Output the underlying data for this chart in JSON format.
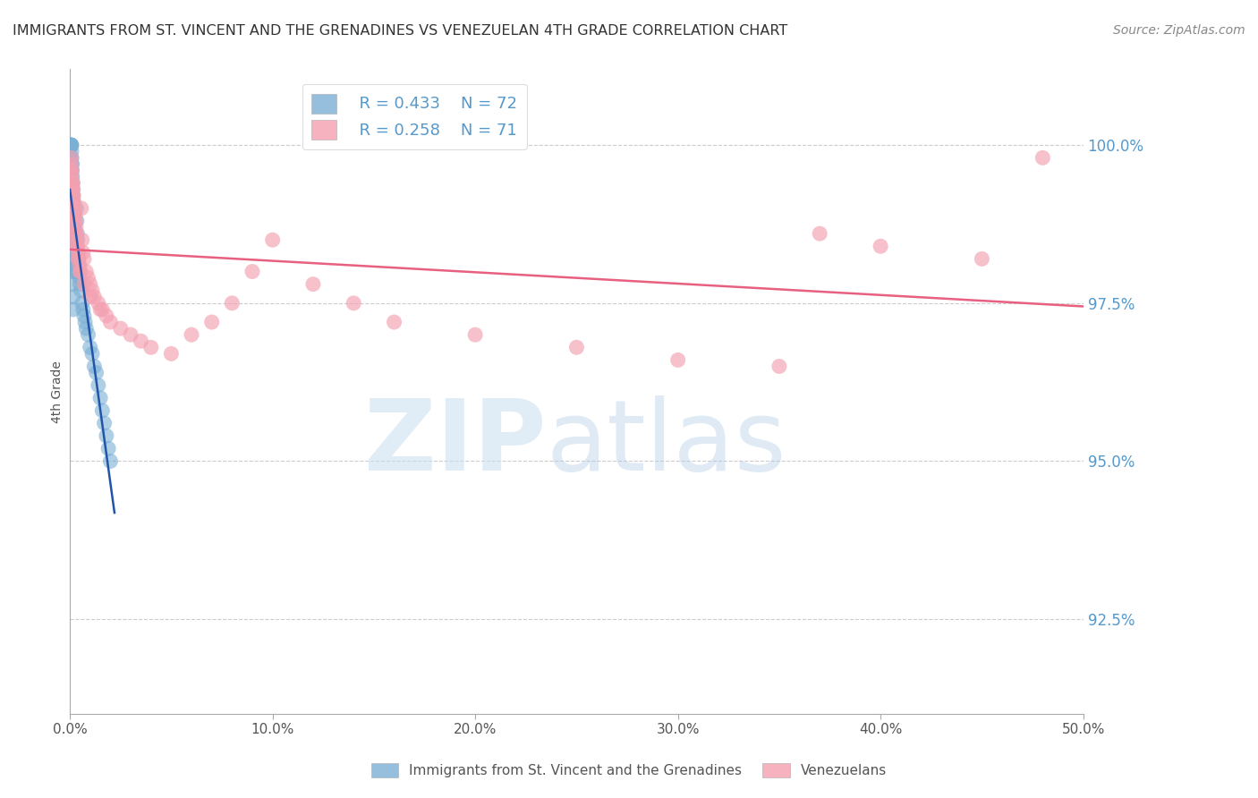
{
  "title": "IMMIGRANTS FROM ST. VINCENT AND THE GRENADINES VS VENEZUELAN 4TH GRADE CORRELATION CHART",
  "source": "Source: ZipAtlas.com",
  "ylabel": "4th Grade",
  "xlim": [
    0.0,
    50.0
  ],
  "ylim": [
    91.0,
    101.2
  ],
  "yticks": [
    92.5,
    95.0,
    97.5,
    100.0
  ],
  "xticks": [
    0.0,
    10.0,
    20.0,
    30.0,
    40.0,
    50.0
  ],
  "blue_R": 0.433,
  "blue_N": 72,
  "pink_R": 0.258,
  "pink_N": 71,
  "blue_label": "Immigrants from St. Vincent and the Grenadines",
  "pink_label": "Venezuelans",
  "blue_color": "#7bafd4",
  "pink_color": "#f4a0b0",
  "blue_line_color": "#2255aa",
  "pink_line_color": "#e86080",
  "background_color": "#ffffff",
  "grid_color": "#cccccc",
  "axis_label_color": "#5599cc",
  "title_color": "#333333",
  "blue_x": [
    0.05,
    0.05,
    0.05,
    0.06,
    0.07,
    0.08,
    0.08,
    0.09,
    0.1,
    0.1,
    0.11,
    0.12,
    0.13,
    0.14,
    0.15,
    0.16,
    0.17,
    0.18,
    0.19,
    0.2,
    0.21,
    0.22,
    0.23,
    0.24,
    0.25,
    0.26,
    0.27,
    0.28,
    0.29,
    0.3,
    0.32,
    0.34,
    0.36,
    0.38,
    0.4,
    0.42,
    0.44,
    0.46,
    0.48,
    0.5,
    0.55,
    0.6,
    0.65,
    0.7,
    0.75,
    0.8,
    0.9,
    1.0,
    1.1,
    1.2,
    1.3,
    1.4,
    1.5,
    1.6,
    1.7,
    1.8,
    1.9,
    2.0,
    0.05,
    0.05,
    0.06,
    0.07,
    0.08,
    0.09,
    0.1,
    0.11,
    0.12,
    0.13,
    0.14,
    0.15,
    0.16,
    0.17
  ],
  "blue_y": [
    100.0,
    100.0,
    100.0,
    100.0,
    100.0,
    100.0,
    99.9,
    99.8,
    99.7,
    99.7,
    99.6,
    99.5,
    99.4,
    99.3,
    99.2,
    99.1,
    99.0,
    98.9,
    98.8,
    98.7,
    98.6,
    98.5,
    98.5,
    98.4,
    98.3,
    98.2,
    98.2,
    98.1,
    98.0,
    98.0,
    99.0,
    98.8,
    98.6,
    98.5,
    98.3,
    98.2,
    98.1,
    98.0,
    97.9,
    97.8,
    97.7,
    97.5,
    97.4,
    97.3,
    97.2,
    97.1,
    97.0,
    96.8,
    96.7,
    96.5,
    96.4,
    96.2,
    96.0,
    95.8,
    95.6,
    95.4,
    95.2,
    95.0,
    100.0,
    99.8,
    99.6,
    99.4,
    99.2,
    99.0,
    98.8,
    98.6,
    98.4,
    98.2,
    98.0,
    97.8,
    97.6,
    97.4
  ],
  "pink_x": [
    0.05,
    0.07,
    0.08,
    0.09,
    0.1,
    0.11,
    0.12,
    0.13,
    0.14,
    0.15,
    0.16,
    0.18,
    0.2,
    0.22,
    0.24,
    0.26,
    0.28,
    0.3,
    0.32,
    0.35,
    0.38,
    0.4,
    0.44,
    0.48,
    0.52,
    0.56,
    0.6,
    0.65,
    0.7,
    0.8,
    0.9,
    1.0,
    1.1,
    1.2,
    1.4,
    1.6,
    1.8,
    2.0,
    2.5,
    3.0,
    3.5,
    4.0,
    5.0,
    6.0,
    7.0,
    8.0,
    9.0,
    10.0,
    12.0,
    14.0,
    16.0,
    20.0,
    25.0,
    30.0,
    35.0,
    37.0,
    40.0,
    45.0,
    48.0,
    0.06,
    0.09,
    0.12,
    0.15,
    0.2,
    0.25,
    0.3,
    0.4,
    0.5,
    0.7,
    1.0,
    1.5
  ],
  "pink_y": [
    99.8,
    99.7,
    99.5,
    99.4,
    99.6,
    99.3,
    99.2,
    99.1,
    99.0,
    99.4,
    99.3,
    99.2,
    99.1,
    99.0,
    98.9,
    98.9,
    98.8,
    98.7,
    98.6,
    98.5,
    98.4,
    98.3,
    98.2,
    98.1,
    98.0,
    99.0,
    98.5,
    98.3,
    98.2,
    98.0,
    97.9,
    97.8,
    97.7,
    97.6,
    97.5,
    97.4,
    97.3,
    97.2,
    97.1,
    97.0,
    96.9,
    96.8,
    96.7,
    97.0,
    97.2,
    97.5,
    98.0,
    98.5,
    97.8,
    97.5,
    97.2,
    97.0,
    96.8,
    96.6,
    96.5,
    98.6,
    98.4,
    98.2,
    99.8,
    99.6,
    99.4,
    99.2,
    99.0,
    98.8,
    98.6,
    98.4,
    98.2,
    98.0,
    97.8,
    97.6,
    97.4
  ]
}
